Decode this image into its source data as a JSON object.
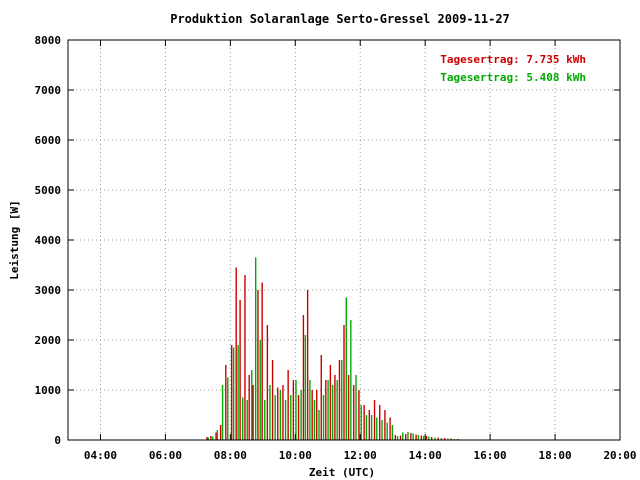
{
  "chart_data": {
    "type": "bar",
    "title": "Produktion Solaranlage Serto-Gressel 2009-11-27",
    "xlabel": "Zeit (UTC)",
    "ylabel": "Leistung [W]",
    "xlim": [
      3.0,
      20.0
    ],
    "ylim": [
      0,
      8000
    ],
    "x_ticks": [
      {
        "value": 4,
        "label": "04:00"
      },
      {
        "value": 6,
        "label": "06:00"
      },
      {
        "value": 8,
        "label": "08:00"
      },
      {
        "value": 10,
        "label": "10:00"
      },
      {
        "value": 12,
        "label": "12:00"
      },
      {
        "value": 14,
        "label": "14:00"
      },
      {
        "value": 16,
        "label": "16:00"
      },
      {
        "value": 18,
        "label": "18:00"
      },
      {
        "value": 20,
        "label": "20:00"
      }
    ],
    "y_ticks": [
      {
        "value": 0,
        "label": "0"
      },
      {
        "value": 1000,
        "label": "1000"
      },
      {
        "value": 2000,
        "label": "2000"
      },
      {
        "value": 3000,
        "label": "3000"
      },
      {
        "value": 4000,
        "label": "4000"
      },
      {
        "value": 5000,
        "label": "5000"
      },
      {
        "value": 6000,
        "label": "6000"
      },
      {
        "value": 7000,
        "label": "7000"
      },
      {
        "value": 8000,
        "label": "8000"
      }
    ],
    "grid": true,
    "legend_position": "top-right",
    "series": [
      {
        "legend": "Tagesertrag: 7.735 kWh",
        "color": "#cc0000",
        "x": [
          7.28,
          7.4,
          7.56,
          7.7,
          7.86,
          8.04,
          8.18,
          8.3,
          8.45,
          8.58,
          8.7,
          8.85,
          8.98,
          9.14,
          9.3,
          9.46,
          9.62,
          9.78,
          9.94,
          10.1,
          10.25,
          10.38,
          10.52,
          10.66,
          10.8,
          10.94,
          11.08,
          11.22,
          11.36,
          11.5,
          11.64,
          11.8,
          11.96,
          12.12,
          12.28,
          12.44,
          12.6,
          12.76,
          12.92,
          13.08,
          13.24,
          13.4,
          13.56,
          13.72,
          13.88,
          14.04,
          14.2,
          14.4,
          14.6,
          14.8,
          15.0
        ],
        "y": [
          60,
          80,
          150,
          300,
          1500,
          1900,
          3450,
          2800,
          3300,
          1300,
          1100,
          3000,
          3150,
          2300,
          1600,
          1050,
          1100,
          1400,
          1200,
          900,
          2500,
          3000,
          1000,
          1000,
          1700,
          1200,
          1500,
          1300,
          1600,
          2300,
          1300,
          1100,
          1000,
          700,
          600,
          800,
          700,
          600,
          450,
          100,
          90,
          120,
          140,
          110,
          90,
          80,
          60,
          50,
          40,
          30,
          20
        ]
      },
      {
        "legend": "Tagesertrag: 5.408 kWh",
        "color": "#00aa00",
        "x": [
          7.32,
          7.46,
          7.6,
          7.76,
          7.92,
          8.1,
          8.24,
          8.38,
          8.52,
          8.66,
          8.78,
          8.92,
          9.06,
          9.22,
          9.38,
          9.54,
          9.7,
          9.86,
          10.02,
          10.18,
          10.31,
          10.45,
          10.59,
          10.73,
          10.87,
          11.01,
          11.15,
          11.29,
          11.43,
          11.57,
          11.71,
          11.87,
          12.03,
          12.19,
          12.35,
          12.51,
          12.67,
          12.83,
          12.99,
          13.15,
          13.31,
          13.47,
          13.63,
          13.79,
          13.95,
          14.11,
          14.3,
          14.5,
          14.7,
          14.9
        ],
        "y": [
          50,
          70,
          200,
          1100,
          1250,
          1850,
          1900,
          850,
          800,
          1400,
          3650,
          2000,
          800,
          1100,
          900,
          1000,
          800,
          900,
          1200,
          1000,
          2100,
          1200,
          800,
          600,
          900,
          1200,
          1100,
          1200,
          1600,
          2850,
          2400,
          1300,
          700,
          500,
          500,
          450,
          400,
          350,
          300,
          80,
          150,
          160,
          130,
          100,
          80,
          70,
          50,
          40,
          30,
          20
        ]
      }
    ]
  }
}
